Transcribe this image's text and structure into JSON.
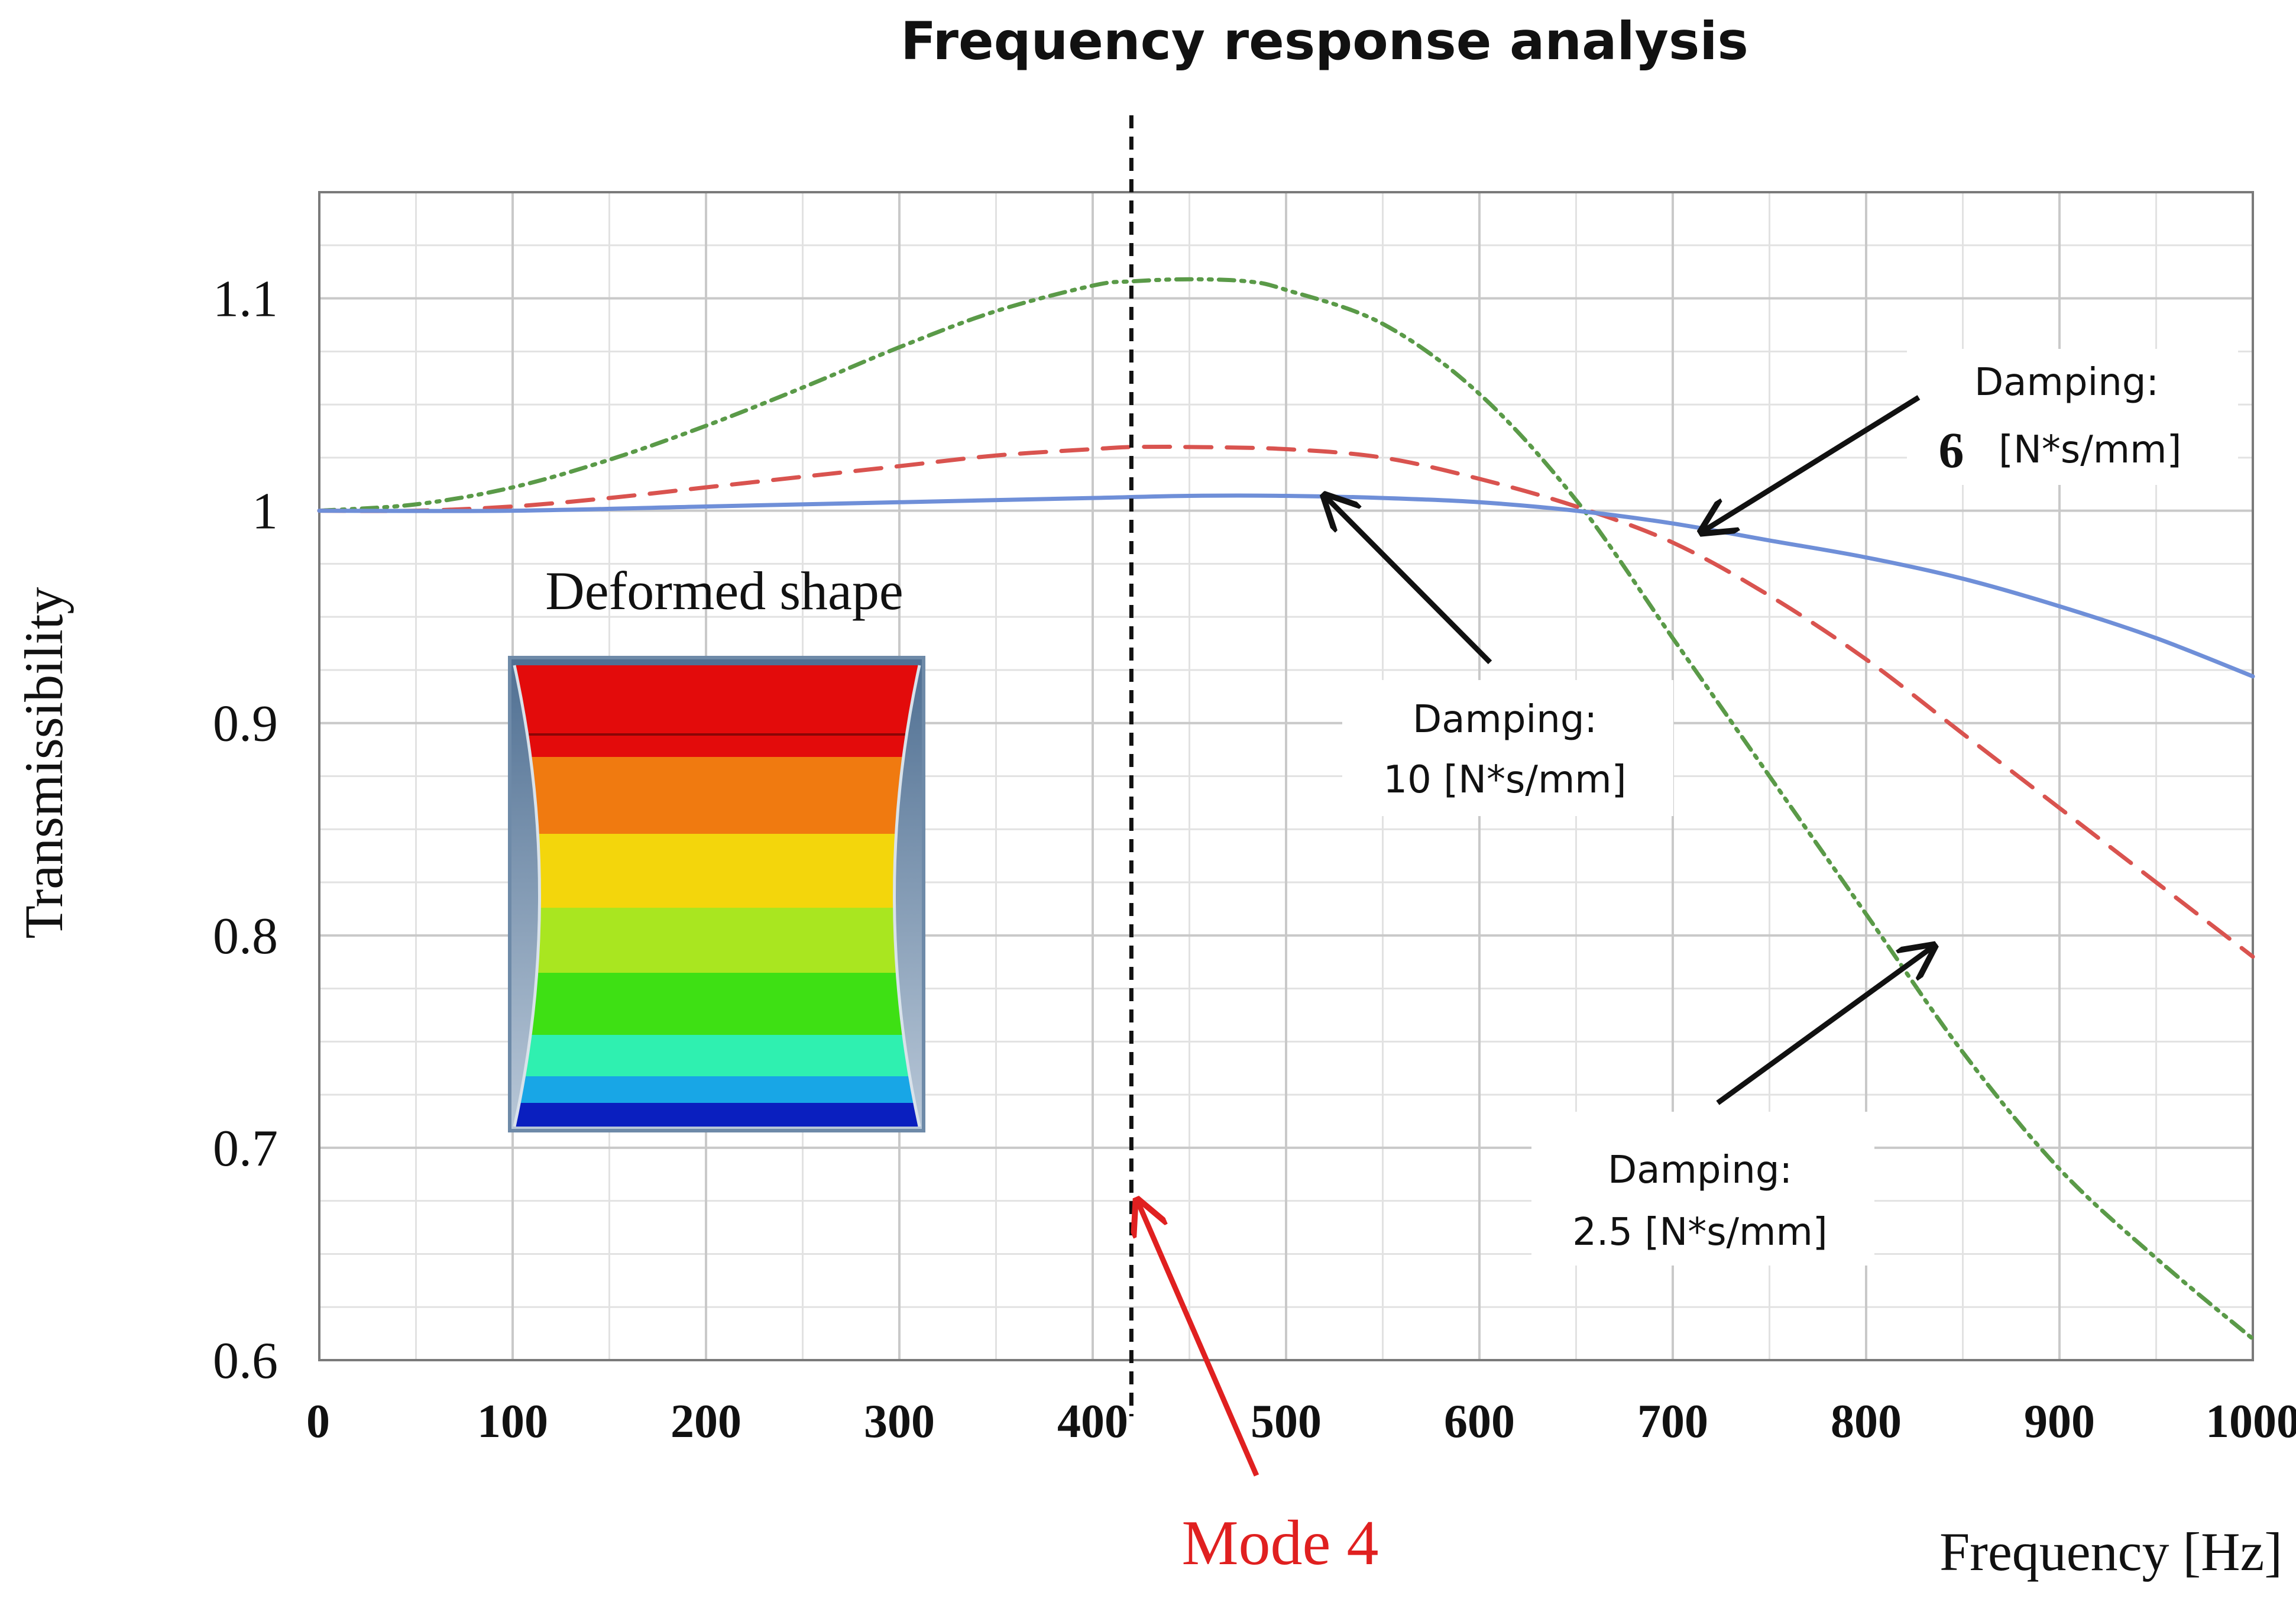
{
  "chart_data": {
    "type": "line",
    "title": "Frequency response analysis",
    "xlabel": "Frequency [Hz]",
    "ylabel": "Transmissibility",
    "xlim": [
      0,
      1000
    ],
    "ylim": [
      0.6,
      1.15
    ],
    "xticks": [
      0,
      100,
      200,
      300,
      400,
      500,
      600,
      700,
      800,
      900,
      1000
    ],
    "xtick_labels": [
      "0",
      "100",
      "200",
      "300",
      "400",
      "500",
      "600",
      "700",
      "800",
      "900",
      "1000"
    ],
    "yticks": [
      0.6,
      0.7,
      0.8,
      0.9,
      1.0,
      1.1
    ],
    "ytick_labels": [
      "0.6",
      "0.7",
      "0.8",
      "0.9",
      "1",
      "1.1"
    ],
    "grid": true,
    "series": [
      {
        "name": "Damping 2.5 [N*s/mm]",
        "color": "#5a9a48",
        "style": "dash-dot-dot",
        "x": [
          0,
          50,
          100,
          150,
          200,
          250,
          300,
          350,
          400,
          420,
          450,
          480,
          500,
          550,
          600,
          650,
          700,
          750,
          800,
          850,
          900,
          950,
          1000
        ],
        "y": [
          1.0,
          1.003,
          1.011,
          1.024,
          1.04,
          1.058,
          1.077,
          1.094,
          1.106,
          1.108,
          1.109,
          1.108,
          1.104,
          1.088,
          1.055,
          1.005,
          0.94,
          0.875,
          0.81,
          0.745,
          0.69,
          0.648,
          0.61
        ]
      },
      {
        "name": "Damping 6 [N*s/mm]",
        "color": "#d9534f",
        "style": "dashed",
        "x": [
          0,
          50,
          100,
          150,
          200,
          250,
          300,
          350,
          400,
          420,
          450,
          500,
          550,
          600,
          650,
          700,
          750,
          800,
          850,
          900,
          950,
          1000
        ],
        "y": [
          1.0,
          1.0,
          1.002,
          1.006,
          1.011,
          1.016,
          1.021,
          1.026,
          1.029,
          1.03,
          1.03,
          1.029,
          1.025,
          1.015,
          1.002,
          0.985,
          0.96,
          0.93,
          0.895,
          0.86,
          0.825,
          0.79
        ]
      },
      {
        "name": "Damping 10 [N*s/mm]",
        "color": "#6f8fd8",
        "style": "solid",
        "x": [
          0,
          100,
          200,
          300,
          400,
          450,
          500,
          550,
          600,
          650,
          700,
          750,
          800,
          850,
          900,
          950,
          1000
        ],
        "y": [
          1.0,
          1.0,
          1.002,
          1.004,
          1.006,
          1.007,
          1.007,
          1.006,
          1.004,
          1.0,
          0.994,
          0.986,
          0.978,
          0.968,
          0.955,
          0.94,
          0.922
        ]
      }
    ],
    "vertical_line": {
      "x": 420,
      "label": "Mode 4",
      "label_color": "#e02020"
    },
    "annotations": [
      {
        "line1": "Damping:",
        "number": "6",
        "unit": "[N*s/mm]",
        "points_to_x": 715,
        "points_to_y": 0.99
      },
      {
        "line1": "Damping:",
        "line2": "10 [N*s/mm]",
        "points_to_x": 520,
        "points_to_y": 1.007
      },
      {
        "line1": "Damping:",
        "line2": "2.5 [N*s/mm]",
        "points_to_x": 835,
        "points_to_y": 0.795
      }
    ],
    "inset": {
      "title": "Deformed shape"
    }
  }
}
